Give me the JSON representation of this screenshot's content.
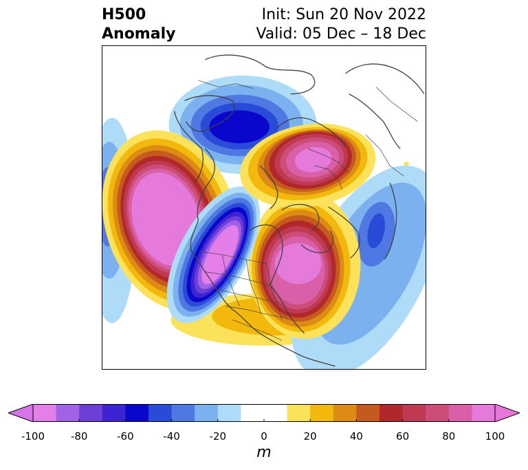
{
  "title": {
    "line1_left": "H500",
    "line2_left": "Anomaly",
    "line1_right": "Init: Sun 20 Nov 2022",
    "line2_right": "Valid: 05 Dec – 18 Dec"
  },
  "colorbar": {
    "unit": "m",
    "min": -100,
    "max": 100,
    "extend": "both",
    "tick_labels": [
      "-100",
      "-80",
      "-60",
      "-40",
      "-20",
      "0",
      "20",
      "40",
      "60",
      "80",
      "100"
    ],
    "bins": [
      {
        "from": -100,
        "to": -90,
        "color": "#e47ee8"
      },
      {
        "from": -90,
        "to": -80,
        "color": "#a262e6"
      },
      {
        "from": -80,
        "to": -70,
        "color": "#6b3fd8"
      },
      {
        "from": -70,
        "to": -60,
        "color": "#3c24d2"
      },
      {
        "from": -60,
        "to": -50,
        "color": "#0a06cc"
      },
      {
        "from": -50,
        "to": -40,
        "color": "#2a4bd8"
      },
      {
        "from": -40,
        "to": -30,
        "color": "#5078e2"
      },
      {
        "from": -30,
        "to": -20,
        "color": "#7cb1f0"
      },
      {
        "from": -20,
        "to": -10,
        "color": "#aedcf8"
      },
      {
        "from": -10,
        "to": 10,
        "color": "#ffffff"
      },
      {
        "from": 10,
        "to": 20,
        "color": "#fce25a"
      },
      {
        "from": 20,
        "to": 30,
        "color": "#f3b80c"
      },
      {
        "from": 30,
        "to": 40,
        "color": "#dc8b14"
      },
      {
        "from": 40,
        "to": 50,
        "color": "#c55a1e"
      },
      {
        "from": 50,
        "to": 60,
        "color": "#b1272a"
      },
      {
        "from": 60,
        "to": 70,
        "color": "#be3a52"
      },
      {
        "from": 70,
        "to": 80,
        "color": "#cc4d78"
      },
      {
        "from": 80,
        "to": 90,
        "color": "#d95fa8"
      },
      {
        "from": 90,
        "to": 100,
        "color": "#e57ada"
      }
    ],
    "under_color": "#d873e8",
    "over_color": "#e875d8"
  },
  "map": {
    "projection": "north-polar-stereographic",
    "variable": "500 hPa geopotential height anomaly",
    "anomaly_centers": [
      {
        "sign": "negative",
        "region": "Siberia / Arctic",
        "level": -60
      },
      {
        "sign": "positive",
        "region": "Eastern Pacific / Gulf of Alaska",
        "level": 100
      },
      {
        "sign": "negative",
        "region": "Western North America",
        "level": -100
      },
      {
        "sign": "positive",
        "region": "Central / Eastern Canada",
        "level": 90
      },
      {
        "sign": "positive",
        "region": "Scandinavia / Northern Europe",
        "level": 90
      },
      {
        "sign": "negative",
        "region": "Eastern North Atlantic",
        "level": -60
      }
    ]
  }
}
